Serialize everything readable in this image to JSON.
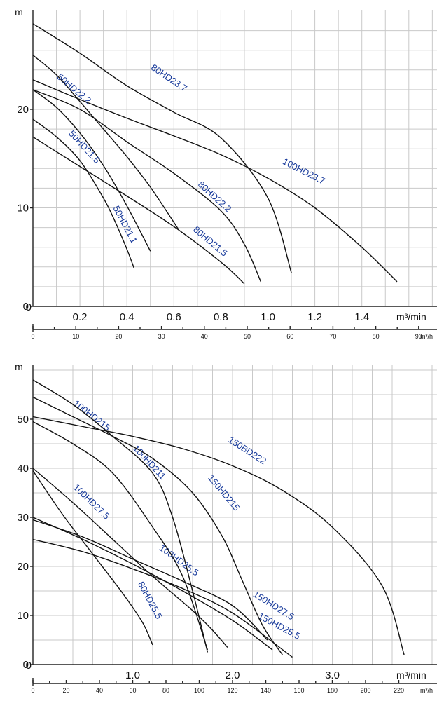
{
  "chart_data": [
    {
      "type": "line",
      "ylabel": "m",
      "xlabel": "m³/min",
      "xlabel2": "m³/h",
      "xlim": [
        0,
        1.55
      ],
      "ylim": [
        0,
        28.5
      ],
      "xticks": [
        0,
        0.2,
        0.4,
        0.6,
        0.8,
        1.0,
        1.2,
        1.4
      ],
      "xtick_labels": [
        "0",
        "0.2",
        "0.4",
        "0.6",
        "0.8",
        "1.0",
        "1.2",
        "1.4"
      ],
      "yticks": [
        0,
        10,
        20
      ],
      "ytick_labels": [
        "0",
        "10",
        "20"
      ],
      "x2ticks": [
        0,
        10,
        20,
        30,
        40,
        50,
        60,
        70,
        80,
        90
      ],
      "x2tick_labels": [
        "0",
        "10",
        "20",
        "30",
        "40",
        "50",
        "60",
        "70",
        "80",
        "90"
      ],
      "grid": true,
      "series": [
        {
          "name": "50HD21.1",
          "x": [
            0,
            0.1,
            0.2,
            0.3,
            0.35,
            0.4,
            0.43
          ],
          "y": [
            19,
            17.2,
            14.8,
            11,
            8.6,
            5.8,
            3.9
          ],
          "label_at": [
            0.34,
            10.0
          ],
          "label_angle": 62
        },
        {
          "name": "50HD21.5",
          "x": [
            0,
            0.1,
            0.2,
            0.3,
            0.4,
            0.5
          ],
          "y": [
            22,
            20.2,
            17.6,
            14.3,
            10.2,
            5.6
          ],
          "label_at": [
            0.15,
            17.5
          ],
          "label_angle": 47
        },
        {
          "name": "50HD22.2",
          "x": [
            0,
            0.1,
            0.2,
            0.3,
            0.4,
            0.5,
            0.62
          ],
          "y": [
            25.5,
            23.5,
            20.8,
            18,
            15.2,
            12.1,
            7.8
          ],
          "label_at": [
            0.1,
            23.2
          ],
          "label_angle": 40
        },
        {
          "name": "80HD21.5",
          "x": [
            0,
            0.2,
            0.4,
            0.6,
            0.8,
            0.9
          ],
          "y": [
            17.2,
            14.2,
            11.2,
            8.1,
            4.5,
            2.3
          ],
          "label_at": [
            0.68,
            7.7
          ],
          "label_angle": 40
        },
        {
          "name": "80HD22.2",
          "x": [
            0,
            0.2,
            0.4,
            0.6,
            0.8,
            0.9,
            0.97
          ],
          "y": [
            22,
            20,
            16.7,
            13.5,
            9.7,
            6.3,
            2.5
          ],
          "label_at": [
            0.7,
            12.3
          ],
          "label_angle": 42
        },
        {
          "name": "80HD23.7",
          "x": [
            0,
            0.2,
            0.4,
            0.6,
            0.8,
            1.0,
            1.1
          ],
          "y": [
            28.7,
            25.7,
            22.4,
            19.7,
            17.1,
            11,
            3.4
          ],
          "label_at": [
            0.5,
            24.1
          ],
          "label_angle": 34
        },
        {
          "name": "100HD23.7",
          "x": [
            0,
            0.2,
            0.4,
            0.6,
            0.8,
            1.0,
            1.2,
            1.4,
            1.55
          ],
          "y": [
            23,
            21,
            19.1,
            17.3,
            15.4,
            13,
            10,
            6,
            2.5
          ],
          "label_at": [
            1.06,
            14.5
          ],
          "label_angle": 27
        }
      ]
    },
    {
      "type": "line",
      "ylabel": "m",
      "xlabel": "m³/min",
      "xlabel2": "m³/h",
      "xlim": [
        0,
        3.85
      ],
      "ylim": [
        0,
        58
      ],
      "xticks": [
        0,
        1.0,
        2.0,
        3.0
      ],
      "xtick_labels": [
        "0",
        "1.0",
        "2.0",
        "3.0"
      ],
      "yticks": [
        0,
        10,
        20,
        30,
        40,
        50
      ],
      "ytick_labels": [
        "0",
        "10",
        "20",
        "30",
        "40",
        "50"
      ],
      "x2ticks": [
        0,
        20,
        40,
        60,
        80,
        100,
        120,
        140,
        160,
        180,
        200,
        220
      ],
      "x2tick_labels": [
        "0",
        "20",
        "40",
        "60",
        "80",
        "100",
        "120",
        "140",
        "160",
        "180",
        "200",
        "220"
      ],
      "grid": true,
      "series": [
        {
          "name": "80HD25.5",
          "x": [
            0,
            0.3,
            0.6,
            0.9,
            1.1,
            1.2
          ],
          "y": [
            39.5,
            30.5,
            22.5,
            14.5,
            8.5,
            4
          ],
          "label_at": [
            1.05,
            16.5
          ],
          "label_angle": 62
        },
        {
          "name": "100HD27.5",
          "x": [
            0,
            0.4,
            0.8,
            1.2,
            1.6,
            1.8,
            1.95
          ],
          "y": [
            40,
            33,
            25.5,
            18,
            11,
            7,
            3.5
          ],
          "label_at": [
            0.4,
            36
          ],
          "label_angle": 44
        },
        {
          "name": "100HD25.5",
          "x": [
            0,
            0.5,
            1.0,
            1.5,
            2.0,
            2.4
          ],
          "y": [
            30,
            25.5,
            20.5,
            15,
            9,
            3
          ],
          "label_at": [
            1.26,
            23.5
          ],
          "label_angle": 36
        },
        {
          "name": "150HD25.5",
          "x": [
            0,
            0.5,
            1.0,
            1.5,
            2.0,
            2.6
          ],
          "y": [
            25.5,
            23,
            19.5,
            15.5,
            10.5,
            1.5
          ],
          "label_at": [
            2.25,
            9.5
          ],
          "label_angle": 28
        },
        {
          "name": "150HD27.5",
          "x": [
            0,
            0.5,
            1.0,
            1.5,
            2.0,
            2.35
          ],
          "y": [
            29.5,
            26,
            21.5,
            17,
            12,
            5
          ],
          "label_at": [
            2.2,
            14
          ],
          "label_angle": 32
        },
        {
          "name": "100HD211",
          "x": [
            0,
            0.4,
            0.8,
            1.2,
            1.5,
            1.75
          ],
          "y": [
            49.5,
            45,
            39,
            28,
            18,
            3
          ],
          "label_at": [
            1.0,
            44
          ],
          "label_angle": 47
        },
        {
          "name": "100HD215",
          "x": [
            0,
            0.4,
            0.8,
            1.2,
            1.6,
            1.9,
            2.1,
            2.3,
            2.5
          ],
          "y": [
            54.5,
            50.5,
            46.5,
            42,
            35,
            26,
            17,
            8,
            2
          ],
          "label_at": [
            0.4,
            53
          ],
          "label_angle": 38
        },
        {
          "name": "150HD215",
          "x": [
            0,
            0.4,
            0.8,
            1.2,
            1.4,
            1.6,
            1.75
          ],
          "y": [
            58,
            53,
            46.5,
            39,
            30,
            15,
            2.5
          ],
          "label_at": [
            1.75,
            38
          ],
          "label_angle": 50
        },
        {
          "name": "150BD222",
          "x": [
            0,
            0.5,
            1.0,
            1.5,
            2.0,
            2.5,
            3.0,
            3.5,
            3.72
          ],
          "y": [
            50.5,
            48.5,
            46.5,
            44,
            40.5,
            35.5,
            28,
            16,
            2
          ],
          "label_at": [
            1.95,
            45.5
          ],
          "label_angle": 33
        }
      ]
    }
  ]
}
